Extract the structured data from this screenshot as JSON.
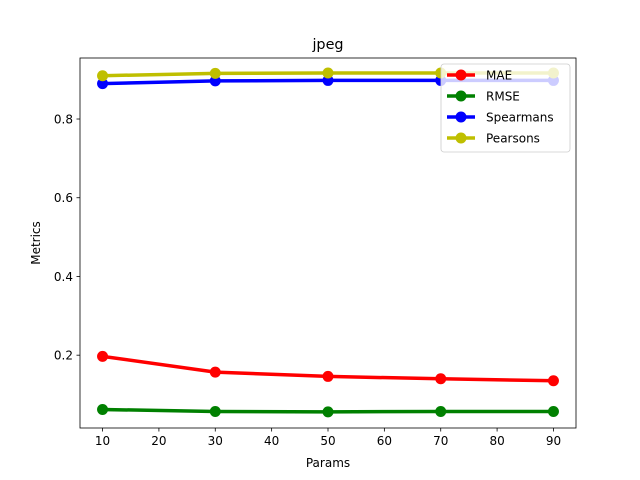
{
  "chart_data": {
    "type": "line",
    "title": "jpeg",
    "xlabel": "Params",
    "ylabel": "Metrics",
    "x": [
      10,
      30,
      50,
      70,
      90
    ],
    "xlim": [
      6,
      94
    ],
    "ylim": [
      0.015,
      0.955
    ],
    "xticks": [
      10,
      20,
      30,
      40,
      50,
      60,
      70,
      80,
      90
    ],
    "yticks": [
      0.2,
      0.4,
      0.6,
      0.8
    ],
    "ytick_labels": [
      "0.2",
      "0.4",
      "0.6",
      "0.8"
    ],
    "grid": false,
    "legend_position": "top-right",
    "series": [
      {
        "name": "MAE",
        "color": "#ff0000",
        "values": [
          0.197,
          0.157,
          0.146,
          0.14,
          0.135
        ]
      },
      {
        "name": "RMSE",
        "color": "#008000",
        "values": [
          0.062,
          0.057,
          0.056,
          0.057,
          0.057
        ]
      },
      {
        "name": "Spearmans",
        "color": "#0000ff",
        "values": [
          0.89,
          0.897,
          0.898,
          0.898,
          0.898
        ]
      },
      {
        "name": "Pearsons",
        "color": "#bfbf00",
        "values": [
          0.91,
          0.916,
          0.917,
          0.917,
          0.917
        ]
      }
    ]
  }
}
